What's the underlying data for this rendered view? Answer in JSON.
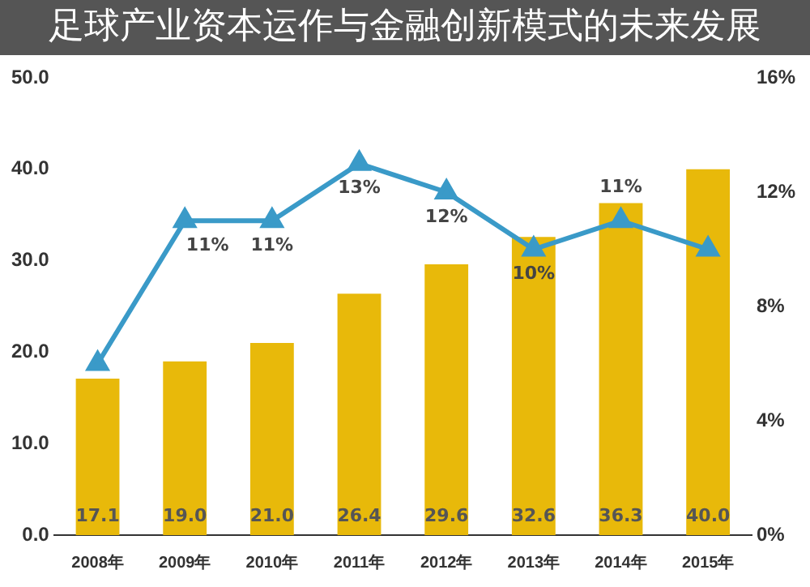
{
  "chart_data": {
    "type": "bar",
    "title": "足球产业资本运作与金融创新模式的未来发展",
    "categories": [
      "2008年",
      "2009年",
      "2010年",
      "2011年",
      "2012年",
      "2013年",
      "2014年",
      "2015年"
    ],
    "series": [
      {
        "color": "#e8b90a",
        "values": [
          17.1,
          19.0,
          21.0,
          26.4,
          29.6,
          32.6,
          36.3,
          40.0
        ],
        "value_labels": [
          "17.1",
          "19.0",
          "21.0",
          "26.4",
          "29.6",
          "32.6",
          "36.3",
          "40.0"
        ]
      },
      {
        "type": "line",
        "axis": "y2",
        "color": "#3a9ac8",
        "values": [
          6,
          11,
          11,
          13,
          12,
          10,
          11,
          10
        ],
        "value_labels": [
          null,
          "11%",
          "11%",
          "13%",
          "12%",
          "10%",
          "11%",
          null
        ]
      }
    ],
    "ylim": [
      0,
      50
    ],
    "yticks": [
      {
        "value": 0,
        "label": "0.0"
      },
      {
        "value": 10,
        "label": "10.0"
      },
      {
        "value": 20,
        "label": "20.0"
      },
      {
        "value": 30,
        "label": "30.0"
      },
      {
        "value": 40,
        "label": "40.0"
      },
      {
        "value": 50,
        "label": "50.0"
      }
    ],
    "y2lim": [
      0,
      16
    ],
    "y2ticks": [
      {
        "value": 0,
        "label": "0%"
      },
      {
        "value": 4,
        "label": "4%"
      },
      {
        "value": 8,
        "label": "8%"
      },
      {
        "value": 12,
        "label": "12%"
      },
      {
        "value": 16,
        "label": "16%"
      }
    ],
    "grid": false,
    "legend": false,
    "marker": "triangle"
  }
}
